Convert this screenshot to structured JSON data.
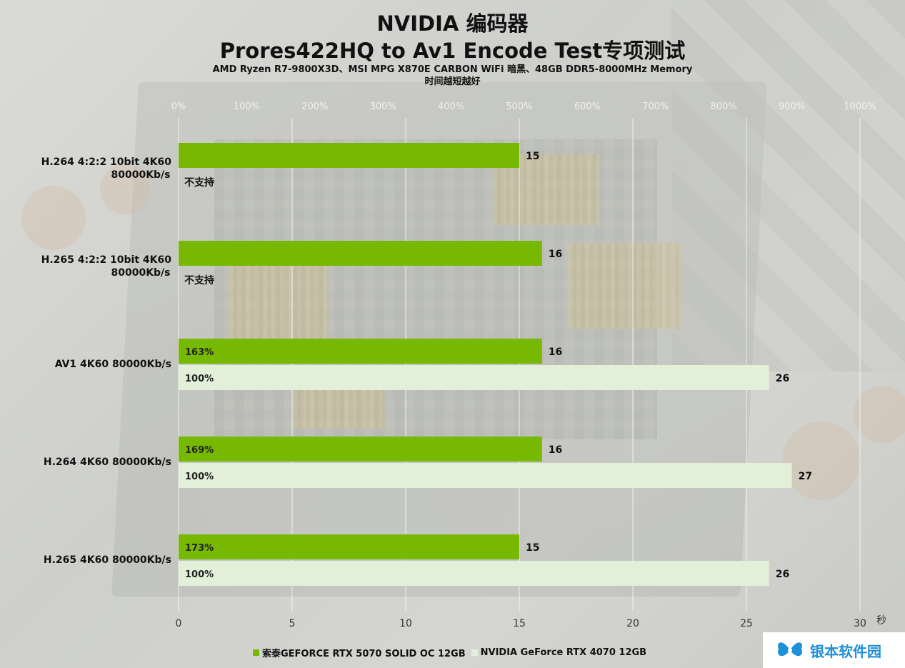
{
  "title_line1": "NVIDIA 编码器",
  "title_line2": "Prores422HQ to Av1 Encode Test专项测试",
  "subtitle_line1": "AMD Ryzen R7-9800X3D、MSI MPG X870E CARBON WiFi 暗黑、48GB DDR5-8000MHz Memory",
  "subtitle_line2": "时间越短越好",
  "colors": {
    "series1": "#76b900",
    "series2": "#e2efd9"
  },
  "top_axis_ticks": [
    "0%",
    "100%",
    "200%",
    "300%",
    "400%",
    "500%",
    "600%",
    "700%",
    "800%",
    "900%",
    "1000%"
  ],
  "logo": {
    "text": "银本软件园",
    "icon": "butterfly-logo-icon"
  },
  "chart_data": {
    "type": "bar",
    "orientation": "horizontal",
    "categories": [
      "H.264 4:2:2 10bit 4K60 80000Kb/s",
      "H.265 4:2:2 10bit 4K60 80000Kb/s",
      "AV1 4K60 80000Kb/s",
      "H.264 4K60 80000Kb/s",
      "H.265 4K60 80000Kb/s"
    ],
    "series": [
      {
        "name": "索泰GEFORCE RTX 5070 SOLID OC 12GB",
        "values": [
          15,
          16,
          16,
          16,
          15
        ],
        "percent_labels": [
          "",
          "",
          "163%",
          "169%",
          "173%"
        ]
      },
      {
        "name": "NVIDIA GeForce RTX 4070 12GB",
        "values": [
          null,
          null,
          26,
          27,
          26
        ],
        "percent_labels": [
          "",
          "",
          "100%",
          "100%",
          "100%"
        ],
        "missing_labels": [
          "不支持",
          "不支持",
          "",
          "",
          ""
        ]
      }
    ],
    "xlim": [
      0,
      30
    ],
    "x_ticks": [
      0,
      5,
      10,
      15,
      20,
      25,
      30
    ],
    "x_unit": "秒",
    "grid": true,
    "legend_position": "bottom"
  }
}
